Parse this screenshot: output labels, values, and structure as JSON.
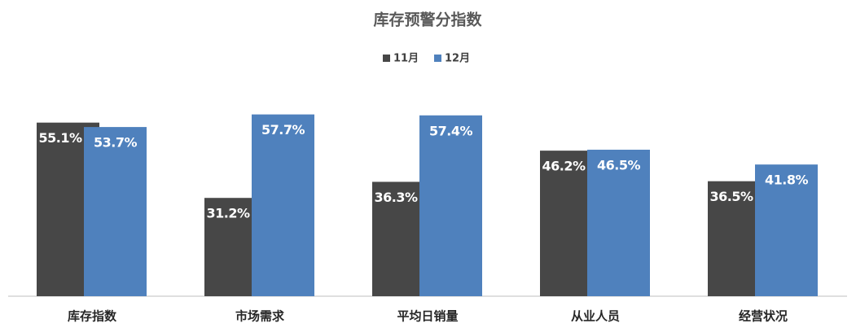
{
  "chart_data": {
    "type": "bar",
    "title": "库存预警分指数",
    "categories": [
      "库存指数",
      "市场需求",
      "平均日销量",
      "从业人员",
      "经营状况"
    ],
    "series": [
      {
        "name": "11月",
        "color": "#474747",
        "values": [
          55.1,
          31.2,
          36.3,
          46.2,
          36.5
        ],
        "value_labels": [
          "55.1%",
          "31.2%",
          "36.3%",
          "46.2%",
          "36.5%"
        ]
      },
      {
        "name": "12月",
        "color": "#4f81bd",
        "values": [
          53.7,
          57.7,
          57.4,
          46.5,
          41.8
        ],
        "value_labels": [
          "53.7%",
          "57.7%",
          "57.4%",
          "46.5%",
          "41.8%"
        ]
      }
    ],
    "ylim": [
      0,
      70
    ],
    "legend": "top"
  }
}
